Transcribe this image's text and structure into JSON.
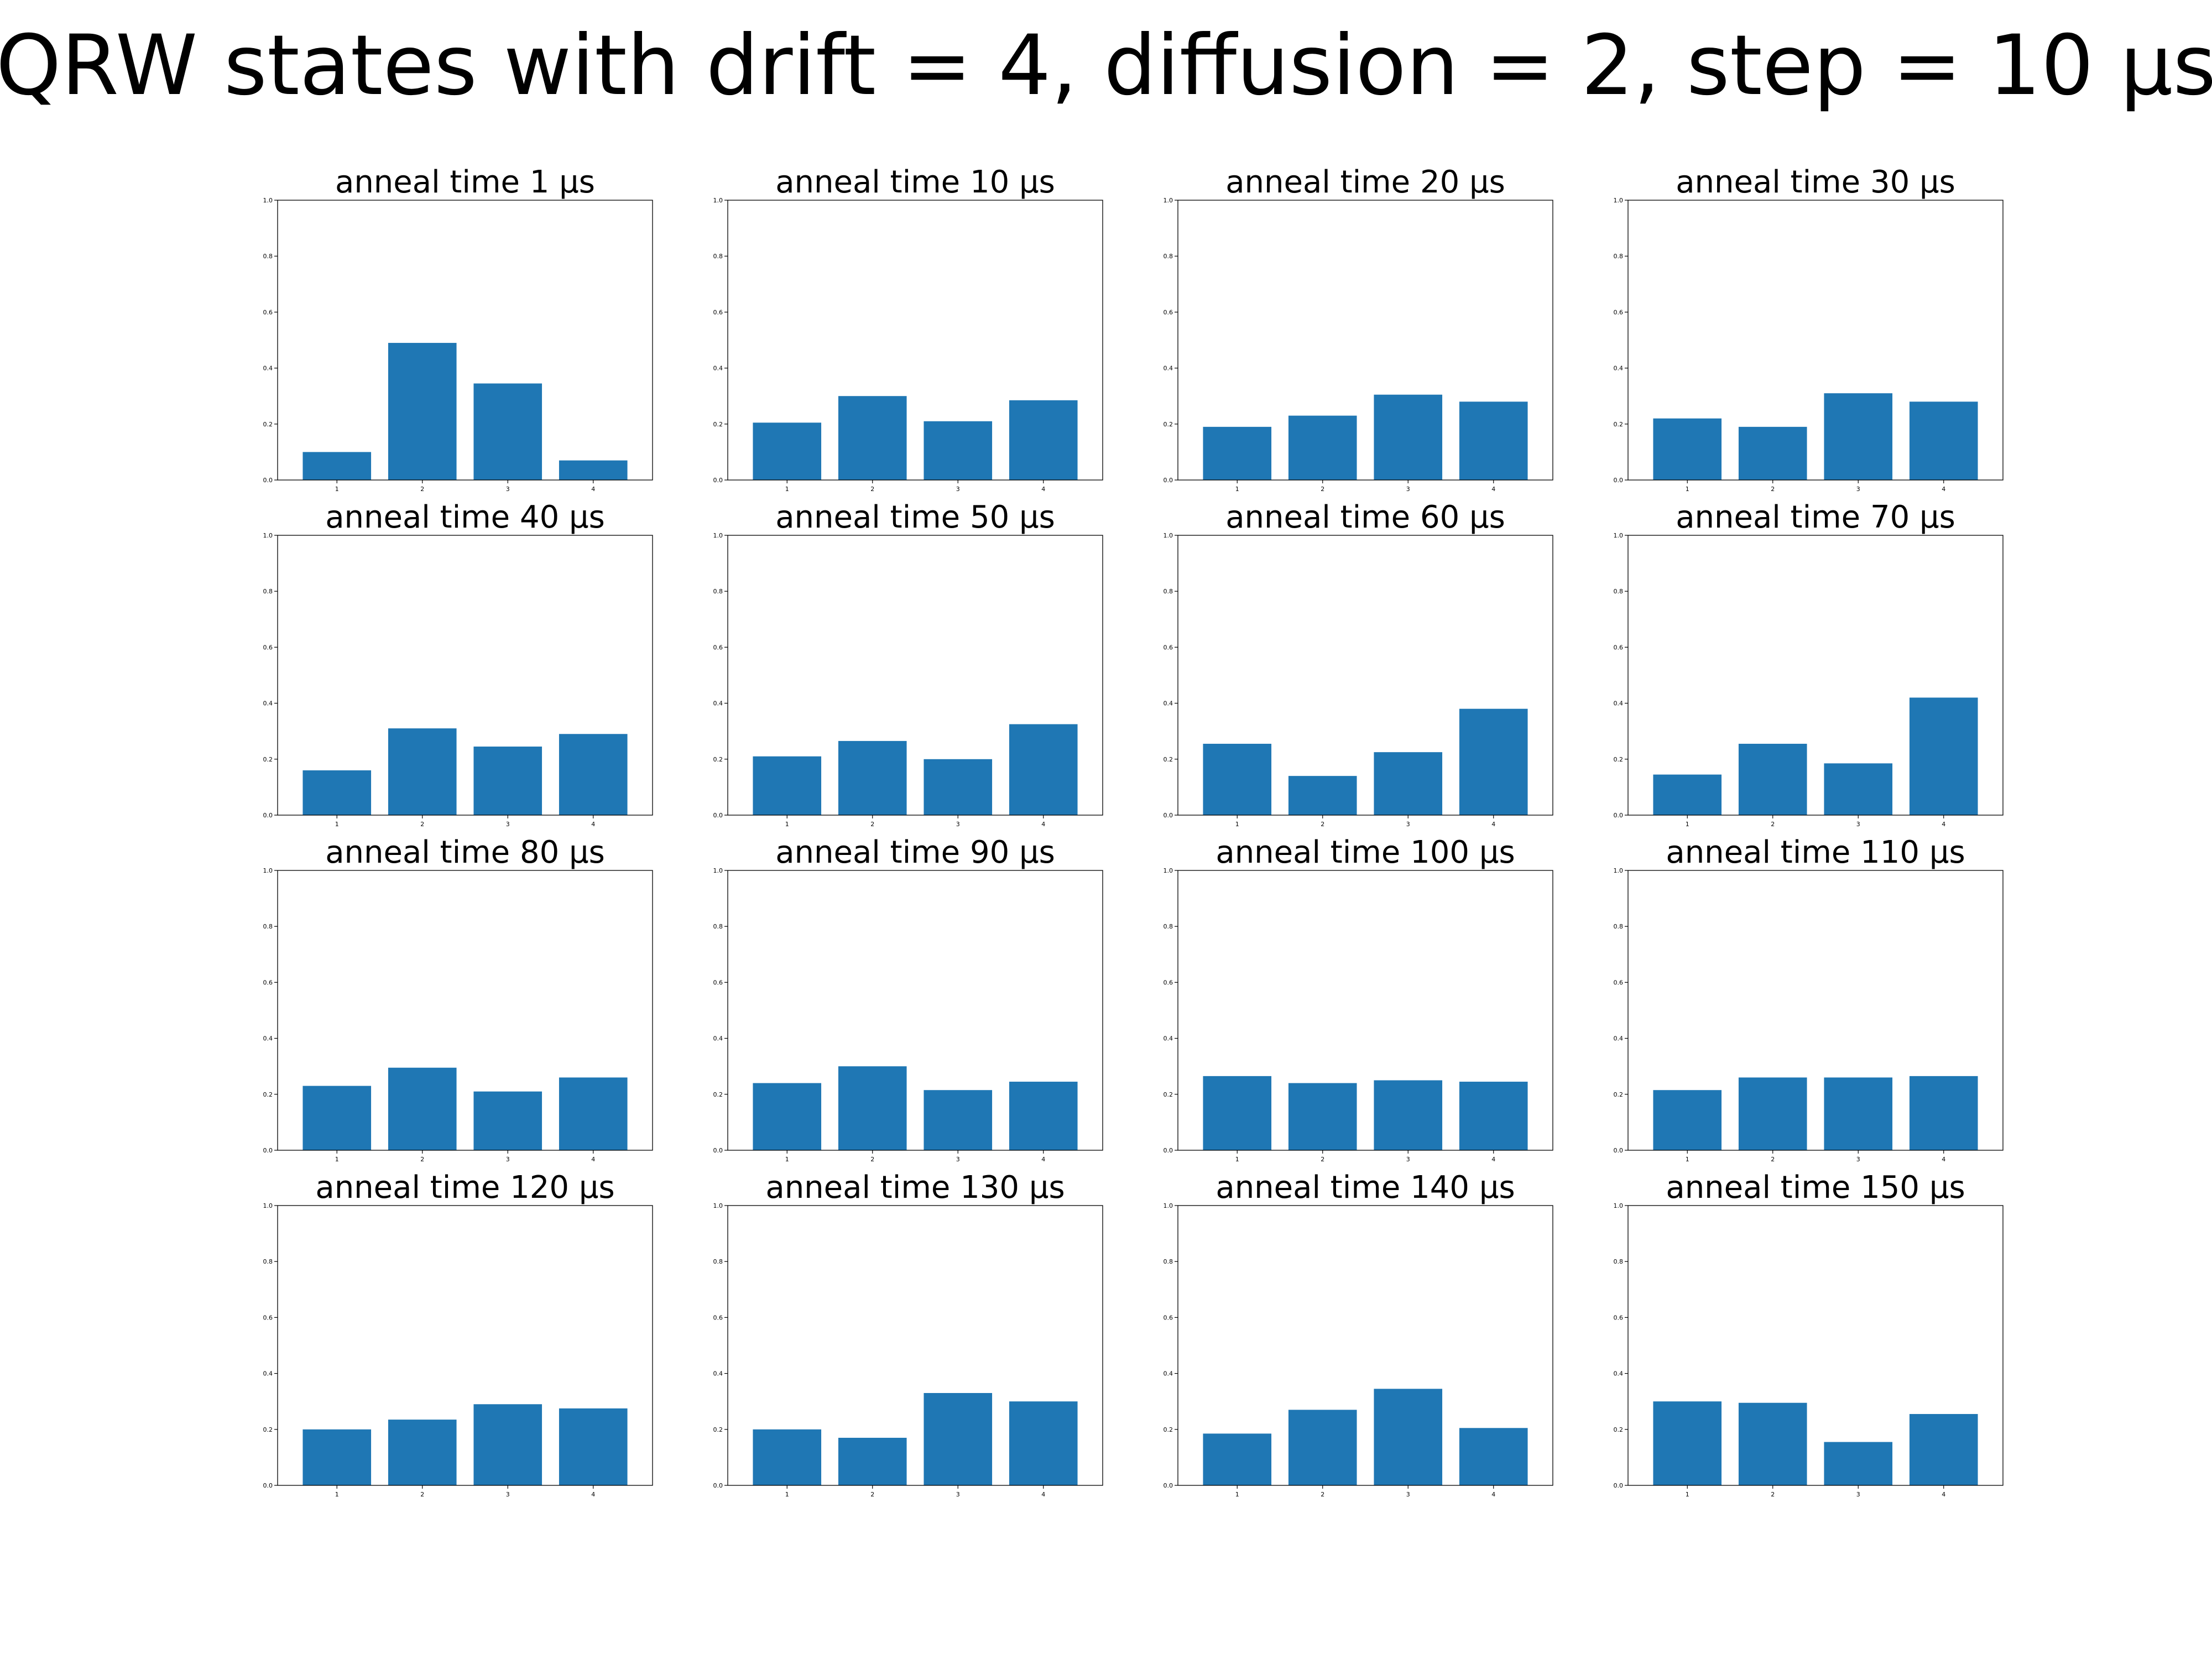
{
  "figure": {
    "title": "QRW states with drift = 4, diffusion = 2, step = 10 μs"
  },
  "colors": {
    "bar": "#1f77b4",
    "axes": "#000000",
    "background": "#ffffff"
  },
  "chart_data": [
    {
      "type": "bar",
      "title": "anneal time 1 μs",
      "categories": [
        "1",
        "2",
        "3",
        "4"
      ],
      "values": [
        0.1,
        0.49,
        0.345,
        0.07
      ],
      "ylim": [
        0,
        1.0
      ],
      "yticks": [
        "0.0",
        "0.2",
        "0.4",
        "0.6",
        "0.8",
        "1.0"
      ],
      "grid": false
    },
    {
      "type": "bar",
      "title": "anneal time 10 μs",
      "categories": [
        "1",
        "2",
        "3",
        "4"
      ],
      "values": [
        0.205,
        0.3,
        0.21,
        0.285
      ],
      "ylim": [
        0,
        1.0
      ],
      "yticks": [
        "0.0",
        "0.2",
        "0.4",
        "0.6",
        "0.8",
        "1.0"
      ],
      "grid": false
    },
    {
      "type": "bar",
      "title": "anneal time 20 μs",
      "categories": [
        "1",
        "2",
        "3",
        "4"
      ],
      "values": [
        0.19,
        0.23,
        0.305,
        0.28
      ],
      "ylim": [
        0,
        1.0
      ],
      "yticks": [
        "0.0",
        "0.2",
        "0.4",
        "0.6",
        "0.8",
        "1.0"
      ],
      "grid": false
    },
    {
      "type": "bar",
      "title": "anneal time 30 μs",
      "categories": [
        "1",
        "2",
        "3",
        "4"
      ],
      "values": [
        0.22,
        0.19,
        0.31,
        0.28
      ],
      "ylim": [
        0,
        1.0
      ],
      "yticks": [
        "0.0",
        "0.2",
        "0.4",
        "0.6",
        "0.8",
        "1.0"
      ],
      "grid": false
    },
    {
      "type": "bar",
      "title": "anneal time 40 μs",
      "categories": [
        "1",
        "2",
        "3",
        "4"
      ],
      "values": [
        0.16,
        0.31,
        0.245,
        0.29
      ],
      "ylim": [
        0,
        1.0
      ],
      "yticks": [
        "0.0",
        "0.2",
        "0.4",
        "0.6",
        "0.8",
        "1.0"
      ],
      "grid": false
    },
    {
      "type": "bar",
      "title": "anneal time 50 μs",
      "categories": [
        "1",
        "2",
        "3",
        "4"
      ],
      "values": [
        0.21,
        0.265,
        0.2,
        0.325
      ],
      "ylim": [
        0,
        1.0
      ],
      "yticks": [
        "0.0",
        "0.2",
        "0.4",
        "0.6",
        "0.8",
        "1.0"
      ],
      "grid": false
    },
    {
      "type": "bar",
      "title": "anneal time 60 μs",
      "categories": [
        "1",
        "2",
        "3",
        "4"
      ],
      "values": [
        0.255,
        0.14,
        0.225,
        0.38
      ],
      "ylim": [
        0,
        1.0
      ],
      "yticks": [
        "0.0",
        "0.2",
        "0.4",
        "0.6",
        "0.8",
        "1.0"
      ],
      "grid": false
    },
    {
      "type": "bar",
      "title": "anneal time 70 μs",
      "categories": [
        "1",
        "2",
        "3",
        "4"
      ],
      "values": [
        0.145,
        0.255,
        0.185,
        0.42
      ],
      "ylim": [
        0,
        1.0
      ],
      "yticks": [
        "0.0",
        "0.2",
        "0.4",
        "0.6",
        "0.8",
        "1.0"
      ],
      "grid": false
    },
    {
      "type": "bar",
      "title": "anneal time 80 μs",
      "categories": [
        "1",
        "2",
        "3",
        "4"
      ],
      "values": [
        0.23,
        0.295,
        0.21,
        0.26
      ],
      "ylim": [
        0,
        1.0
      ],
      "yticks": [
        "0.0",
        "0.2",
        "0.4",
        "0.6",
        "0.8",
        "1.0"
      ],
      "grid": false
    },
    {
      "type": "bar",
      "title": "anneal time 90 μs",
      "categories": [
        "1",
        "2",
        "3",
        "4"
      ],
      "values": [
        0.24,
        0.3,
        0.215,
        0.245
      ],
      "ylim": [
        0,
        1.0
      ],
      "yticks": [
        "0.0",
        "0.2",
        "0.4",
        "0.6",
        "0.8",
        "1.0"
      ],
      "grid": false
    },
    {
      "type": "bar",
      "title": "anneal time 100 μs",
      "categories": [
        "1",
        "2",
        "3",
        "4"
      ],
      "values": [
        0.265,
        0.24,
        0.25,
        0.245
      ],
      "ylim": [
        0,
        1.0
      ],
      "yticks": [
        "0.0",
        "0.2",
        "0.4",
        "0.6",
        "0.8",
        "1.0"
      ],
      "grid": false
    },
    {
      "type": "bar",
      "title": "anneal time 110 μs",
      "categories": [
        "1",
        "2",
        "3",
        "4"
      ],
      "values": [
        0.215,
        0.26,
        0.26,
        0.265
      ],
      "ylim": [
        0,
        1.0
      ],
      "yticks": [
        "0.0",
        "0.2",
        "0.4",
        "0.6",
        "0.8",
        "1.0"
      ],
      "grid": false
    },
    {
      "type": "bar",
      "title": "anneal time 120 μs",
      "categories": [
        "1",
        "2",
        "3",
        "4"
      ],
      "values": [
        0.2,
        0.235,
        0.29,
        0.275
      ],
      "ylim": [
        0,
        1.0
      ],
      "yticks": [
        "0.0",
        "0.2",
        "0.4",
        "0.6",
        "0.8",
        "1.0"
      ],
      "grid": false
    },
    {
      "type": "bar",
      "title": "anneal time 130 μs",
      "categories": [
        "1",
        "2",
        "3",
        "4"
      ],
      "values": [
        0.2,
        0.17,
        0.33,
        0.3
      ],
      "ylim": [
        0,
        1.0
      ],
      "yticks": [
        "0.0",
        "0.2",
        "0.4",
        "0.6",
        "0.8",
        "1.0"
      ],
      "grid": false
    },
    {
      "type": "bar",
      "title": "anneal time 140 μs",
      "categories": [
        "1",
        "2",
        "3",
        "4"
      ],
      "values": [
        0.185,
        0.27,
        0.345,
        0.205
      ],
      "ylim": [
        0,
        1.0
      ],
      "yticks": [
        "0.0",
        "0.2",
        "0.4",
        "0.6",
        "0.8",
        "1.0"
      ],
      "grid": false
    },
    {
      "type": "bar",
      "title": "anneal time 150 μs",
      "categories": [
        "1",
        "2",
        "3",
        "4"
      ],
      "values": [
        0.3,
        0.295,
        0.155,
        0.255
      ],
      "ylim": [
        0,
        1.0
      ],
      "yticks": [
        "0.0",
        "0.2",
        "0.4",
        "0.6",
        "0.8",
        "1.0"
      ],
      "grid": false
    }
  ]
}
